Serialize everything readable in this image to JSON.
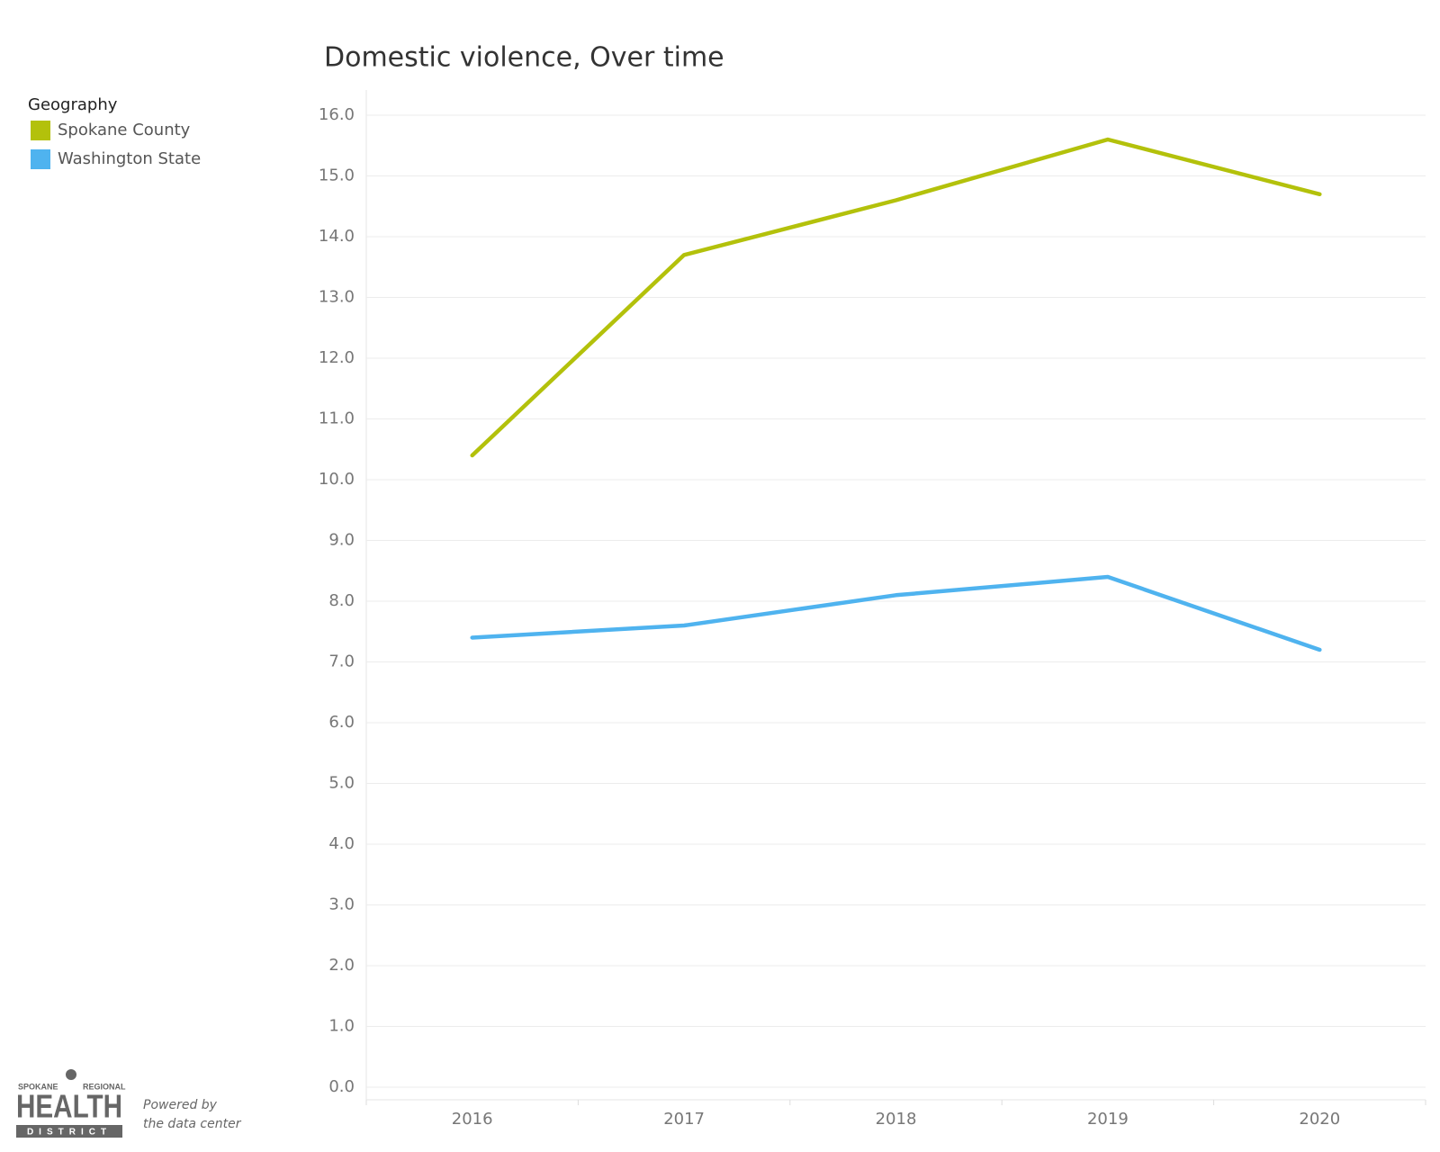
{
  "chart_data": {
    "type": "line",
    "title": "Domestic violence, Over time",
    "legend_title": "Geography",
    "legend_position": "top-left",
    "categories": [
      "2016",
      "2017",
      "2018",
      "2019",
      "2020"
    ],
    "series": [
      {
        "name": "Spokane County",
        "color": "#b3c10b",
        "values": [
          10.4,
          13.7,
          14.6,
          15.6,
          14.7
        ]
      },
      {
        "name": "Washington State",
        "color": "#4fb3ef",
        "values": [
          7.4,
          7.6,
          8.1,
          8.4,
          7.2
        ]
      }
    ],
    "ylim": [
      0,
      16
    ],
    "yticks": [
      {
        "value": 0,
        "label": "0.0"
      },
      {
        "value": 1,
        "label": "1.0"
      },
      {
        "value": 2,
        "label": "2.0"
      },
      {
        "value": 3,
        "label": "3.0"
      },
      {
        "value": 4,
        "label": "4.0"
      },
      {
        "value": 5,
        "label": "5.0"
      },
      {
        "value": 6,
        "label": "6.0"
      },
      {
        "value": 7,
        "label": "7.0"
      },
      {
        "value": 8,
        "label": "8.0"
      },
      {
        "value": 9,
        "label": "9.0"
      },
      {
        "value": 10,
        "label": "10.0"
      },
      {
        "value": 11,
        "label": "11.0"
      },
      {
        "value": 12,
        "label": "12.0"
      },
      {
        "value": 13,
        "label": "13.0"
      },
      {
        "value": 14,
        "label": "14.0"
      },
      {
        "value": 15,
        "label": "15.0"
      },
      {
        "value": 16,
        "label": "16.0"
      }
    ],
    "grid": true
  },
  "footer": {
    "logo": [
      "SPOKANE",
      "REGIONAL",
      "HEALTH",
      "DISTRICT"
    ],
    "credit": [
      "Powered by",
      "the data center"
    ]
  }
}
